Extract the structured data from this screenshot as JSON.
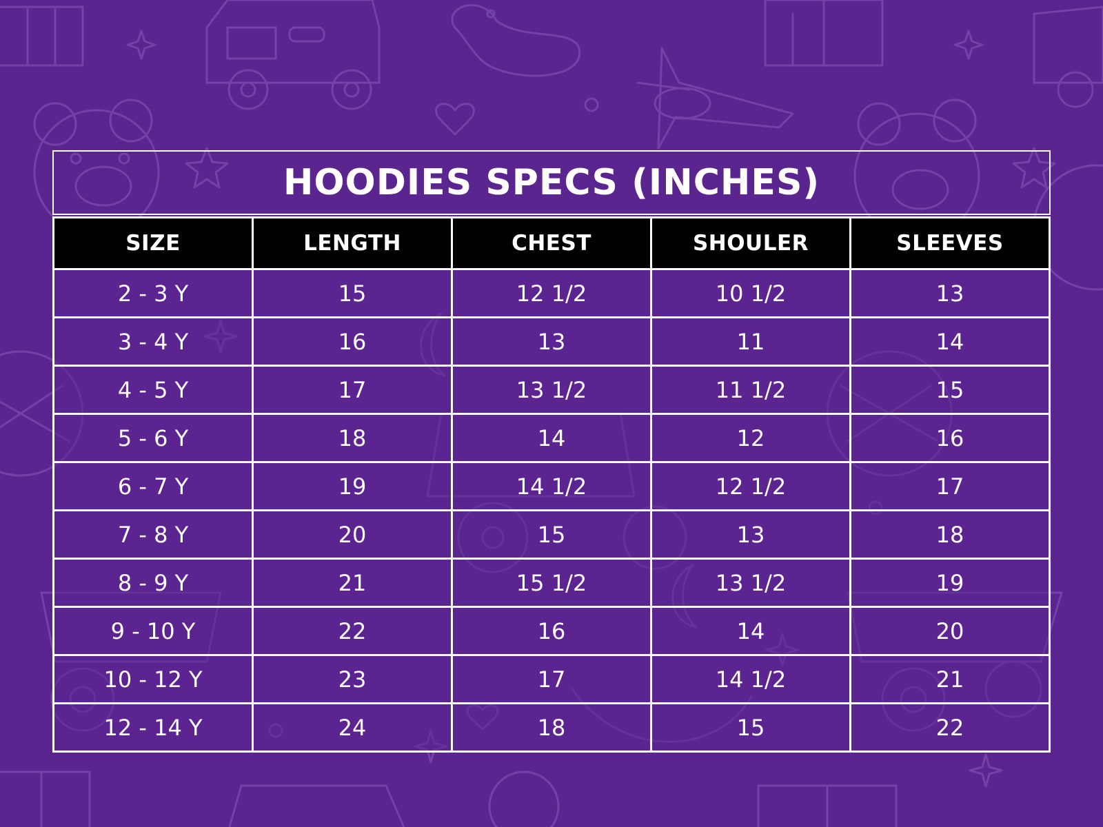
{
  "colors": {
    "background": "#5b2590",
    "header_background": "#000000",
    "text": "#ffffff",
    "border": "#ffffff"
  },
  "title": "HOODIES SPECS (INCHES)",
  "columns": [
    "SIZE",
    "LENGTH",
    "CHEST",
    "SHOULER",
    "SLEEVES"
  ],
  "rows": [
    [
      "2 - 3 Y",
      "15",
      "12 1/2",
      "10 1/2",
      "13"
    ],
    [
      "3 - 4 Y",
      "16",
      "13",
      "11",
      "14"
    ],
    [
      "4 - 5 Y",
      "17",
      "13 1/2",
      "11 1/2",
      "15"
    ],
    [
      "5 - 6 Y",
      "18",
      "14",
      "12",
      "16"
    ],
    [
      "6 - 7 Y",
      "19",
      "14 1/2",
      "12 1/2",
      "17"
    ],
    [
      "7 - 8 Y",
      "20",
      "15",
      "13",
      "18"
    ],
    [
      "8 - 9 Y",
      "21",
      "15 1/2",
      "13 1/2",
      "19"
    ],
    [
      "9 - 10 Y",
      "22",
      "16",
      "14",
      "20"
    ],
    [
      "10 - 12 Y",
      "23",
      "17",
      "14 1/2",
      "21"
    ],
    [
      "12 - 14 Y",
      "24",
      "18",
      "15",
      "22"
    ]
  ],
  "background_motifs": [
    "teddy-bear-icon",
    "toy-truck-icon",
    "rubber-duck-icon",
    "toy-plane-icon",
    "gift-box-icon",
    "star-icon",
    "heart-icon",
    "ball-icon",
    "moon-icon"
  ]
}
